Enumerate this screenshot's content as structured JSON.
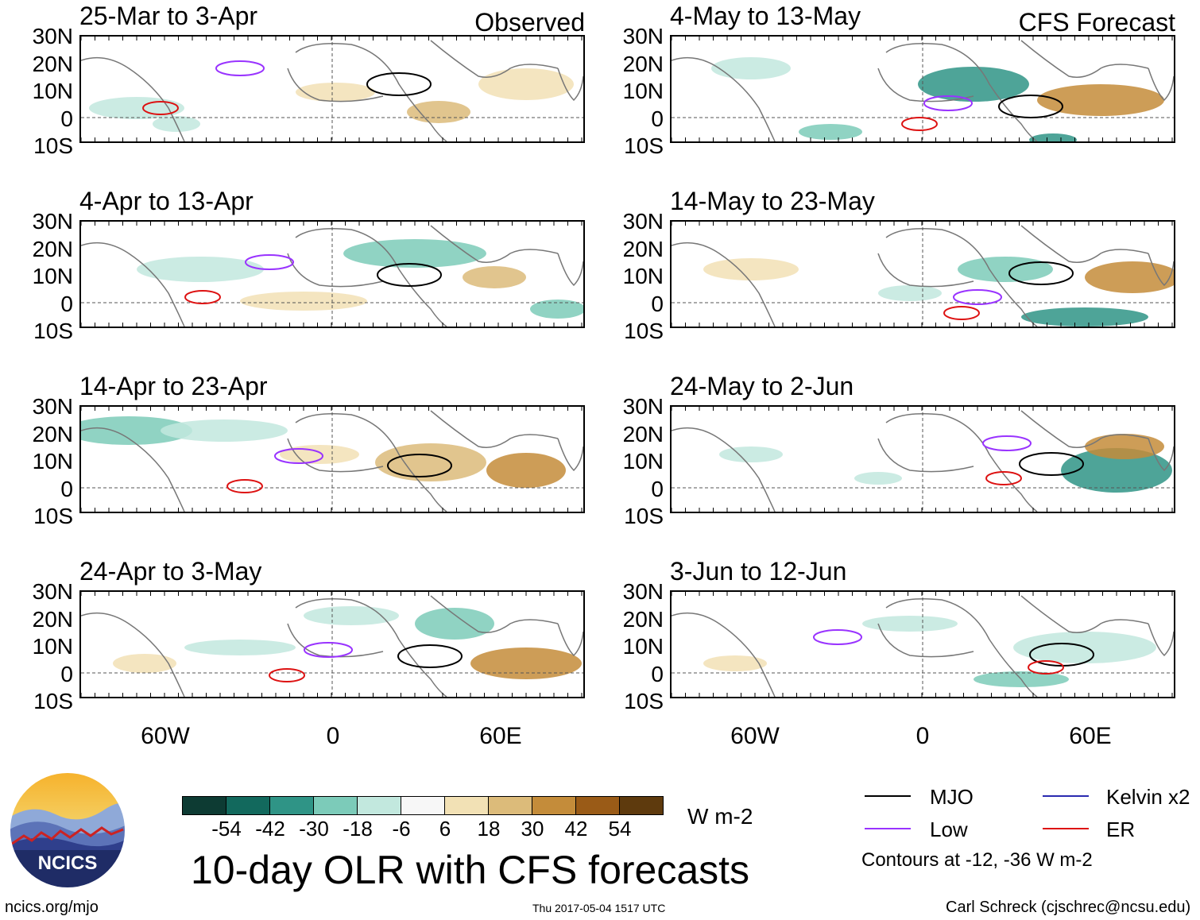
{
  "panels": [
    {
      "title": "25-Mar to 3-Apr",
      "tag": "Observed"
    },
    {
      "title": "4-Apr to 13-Apr",
      "tag": ""
    },
    {
      "title": "14-Apr to 23-Apr",
      "tag": ""
    },
    {
      "title": "24-Apr to 3-May",
      "tag": ""
    },
    {
      "title": "4-May to 13-May",
      "tag": "CFS Forecast"
    },
    {
      "title": "14-May to 23-May",
      "tag": ""
    },
    {
      "title": "24-May to 2-Jun",
      "tag": ""
    },
    {
      "title": "3-Jun to 12-Jun",
      "tag": ""
    }
  ],
  "lat_labels": [
    "30N",
    "20N",
    "10N",
    "0",
    "10S"
  ],
  "lon_labels": [
    "60W",
    "0",
    "60E"
  ],
  "colorbar": {
    "colors": [
      "#0d3b33",
      "#12695d",
      "#2f9486",
      "#7ccbb9",
      "#c2e8de",
      "#f7f7f7",
      "#f2e1b5",
      "#dcbb7a",
      "#c48c3a",
      "#9a5b17",
      "#5e3a0d"
    ],
    "labels": [
      "-54",
      "-42",
      "-30",
      "-18",
      "-6",
      "6",
      "18",
      "30",
      "42",
      "54"
    ],
    "units": "W m-2"
  },
  "legend": {
    "items": [
      {
        "label": "MJO",
        "color": "#000000"
      },
      {
        "label": "Kelvin x2",
        "color": "#2a2ab0"
      },
      {
        "label": "Low",
        "color": "#9933ff"
      },
      {
        "label": "ER",
        "color": "#dd1111"
      }
    ],
    "note": "Contours at -12, -36 W m-2"
  },
  "main_title": "10-day OLR with CFS forecasts",
  "logo_text": "NCICS",
  "footer": {
    "left": "ncics.org/mjo",
    "center": "Thu 2017-05-04 1517 UTC",
    "right": "Carl Schreck (cjschrec@ncsu.edu)"
  }
}
